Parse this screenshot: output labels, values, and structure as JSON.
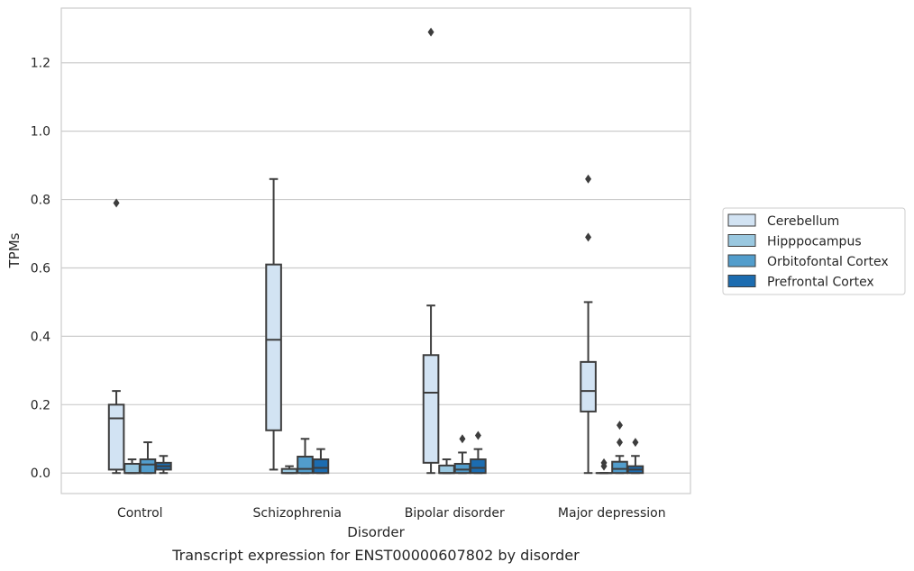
{
  "chart_data": {
    "type": "box",
    "caption": "Transcript expression for ENST00000607802 by disorder",
    "xlabel": "Disorder",
    "ylabel": "TPMs",
    "ylim": [
      -0.06,
      1.36
    ],
    "yticks": [
      0.0,
      0.2,
      0.4,
      0.6,
      0.8,
      1.0,
      1.2
    ],
    "ytick_labels": [
      "0.0",
      "0.2",
      "0.4",
      "0.6",
      "0.8",
      "1.0",
      "1.2"
    ],
    "grid": "horizontal",
    "legend_position": "right",
    "categories": [
      "Control",
      "Schizophrenia",
      "Bipolar disorder",
      "Major depression"
    ],
    "series": [
      {
        "name": "Cerebellum",
        "color": "#d2e3f3",
        "boxes": [
          {
            "whisker_low": 0.0,
            "q1": 0.01,
            "median": 0.16,
            "q3": 0.2,
            "whisker_high": 0.24,
            "outliers": [
              0.79
            ]
          },
          {
            "whisker_low": 0.01,
            "q1": 0.125,
            "median": 0.39,
            "q3": 0.61,
            "whisker_high": 0.86,
            "outliers": []
          },
          {
            "whisker_low": 0.0,
            "q1": 0.03,
            "median": 0.235,
            "q3": 0.345,
            "whisker_high": 0.49,
            "outliers": [
              1.29
            ]
          },
          {
            "whisker_low": 0.0,
            "q1": 0.18,
            "median": 0.24,
            "q3": 0.325,
            "whisker_high": 0.5,
            "outliers": [
              0.86,
              0.69
            ]
          }
        ]
      },
      {
        "name": "Hipppocampus",
        "color": "#9ac8e0",
        "boxes": [
          {
            "whisker_low": 0.0,
            "q1": 0.0,
            "median": 0.0,
            "q3": 0.027,
            "whisker_high": 0.04,
            "outliers": []
          },
          {
            "whisker_low": 0.0,
            "q1": 0.0,
            "median": 0.0,
            "q3": 0.012,
            "whisker_high": 0.02,
            "outliers": []
          },
          {
            "whisker_low": 0.0,
            "q1": 0.0,
            "median": 0.0,
            "q3": 0.022,
            "whisker_high": 0.04,
            "outliers": []
          },
          {
            "whisker_low": 0.0,
            "q1": 0.0,
            "median": 0.0,
            "q3": 0.0,
            "whisker_high": 0.0,
            "outliers": [
              0.03,
              0.02
            ]
          }
        ]
      },
      {
        "name": "Orbitofontal Cortex",
        "color": "#529dcc",
        "boxes": [
          {
            "whisker_low": 0.0,
            "q1": 0.0,
            "median": 0.025,
            "q3": 0.04,
            "whisker_high": 0.09,
            "outliers": []
          },
          {
            "whisker_low": 0.0,
            "q1": 0.0,
            "median": 0.012,
            "q3": 0.048,
            "whisker_high": 0.1,
            "outliers": []
          },
          {
            "whisker_low": 0.0,
            "q1": 0.0,
            "median": 0.01,
            "q3": 0.027,
            "whisker_high": 0.06,
            "outliers": [
              0.1
            ]
          },
          {
            "whisker_low": 0.0,
            "q1": 0.0,
            "median": 0.012,
            "q3": 0.033,
            "whisker_high": 0.05,
            "outliers": [
              0.14,
              0.09
            ]
          }
        ]
      },
      {
        "name": "Prefrontal Cortex",
        "color": "#1c6cb0",
        "boxes": [
          {
            "whisker_low": 0.0,
            "q1": 0.01,
            "median": 0.02,
            "q3": 0.03,
            "whisker_high": 0.05,
            "outliers": []
          },
          {
            "whisker_low": 0.0,
            "q1": 0.0,
            "median": 0.015,
            "q3": 0.04,
            "whisker_high": 0.07,
            "outliers": []
          },
          {
            "whisker_low": 0.0,
            "q1": 0.0,
            "median": 0.015,
            "q3": 0.04,
            "whisker_high": 0.07,
            "outliers": [
              0.11
            ]
          },
          {
            "whisker_low": 0.0,
            "q1": 0.0,
            "median": 0.01,
            "q3": 0.02,
            "whisker_high": 0.05,
            "outliers": [
              0.09
            ]
          }
        ]
      }
    ]
  }
}
